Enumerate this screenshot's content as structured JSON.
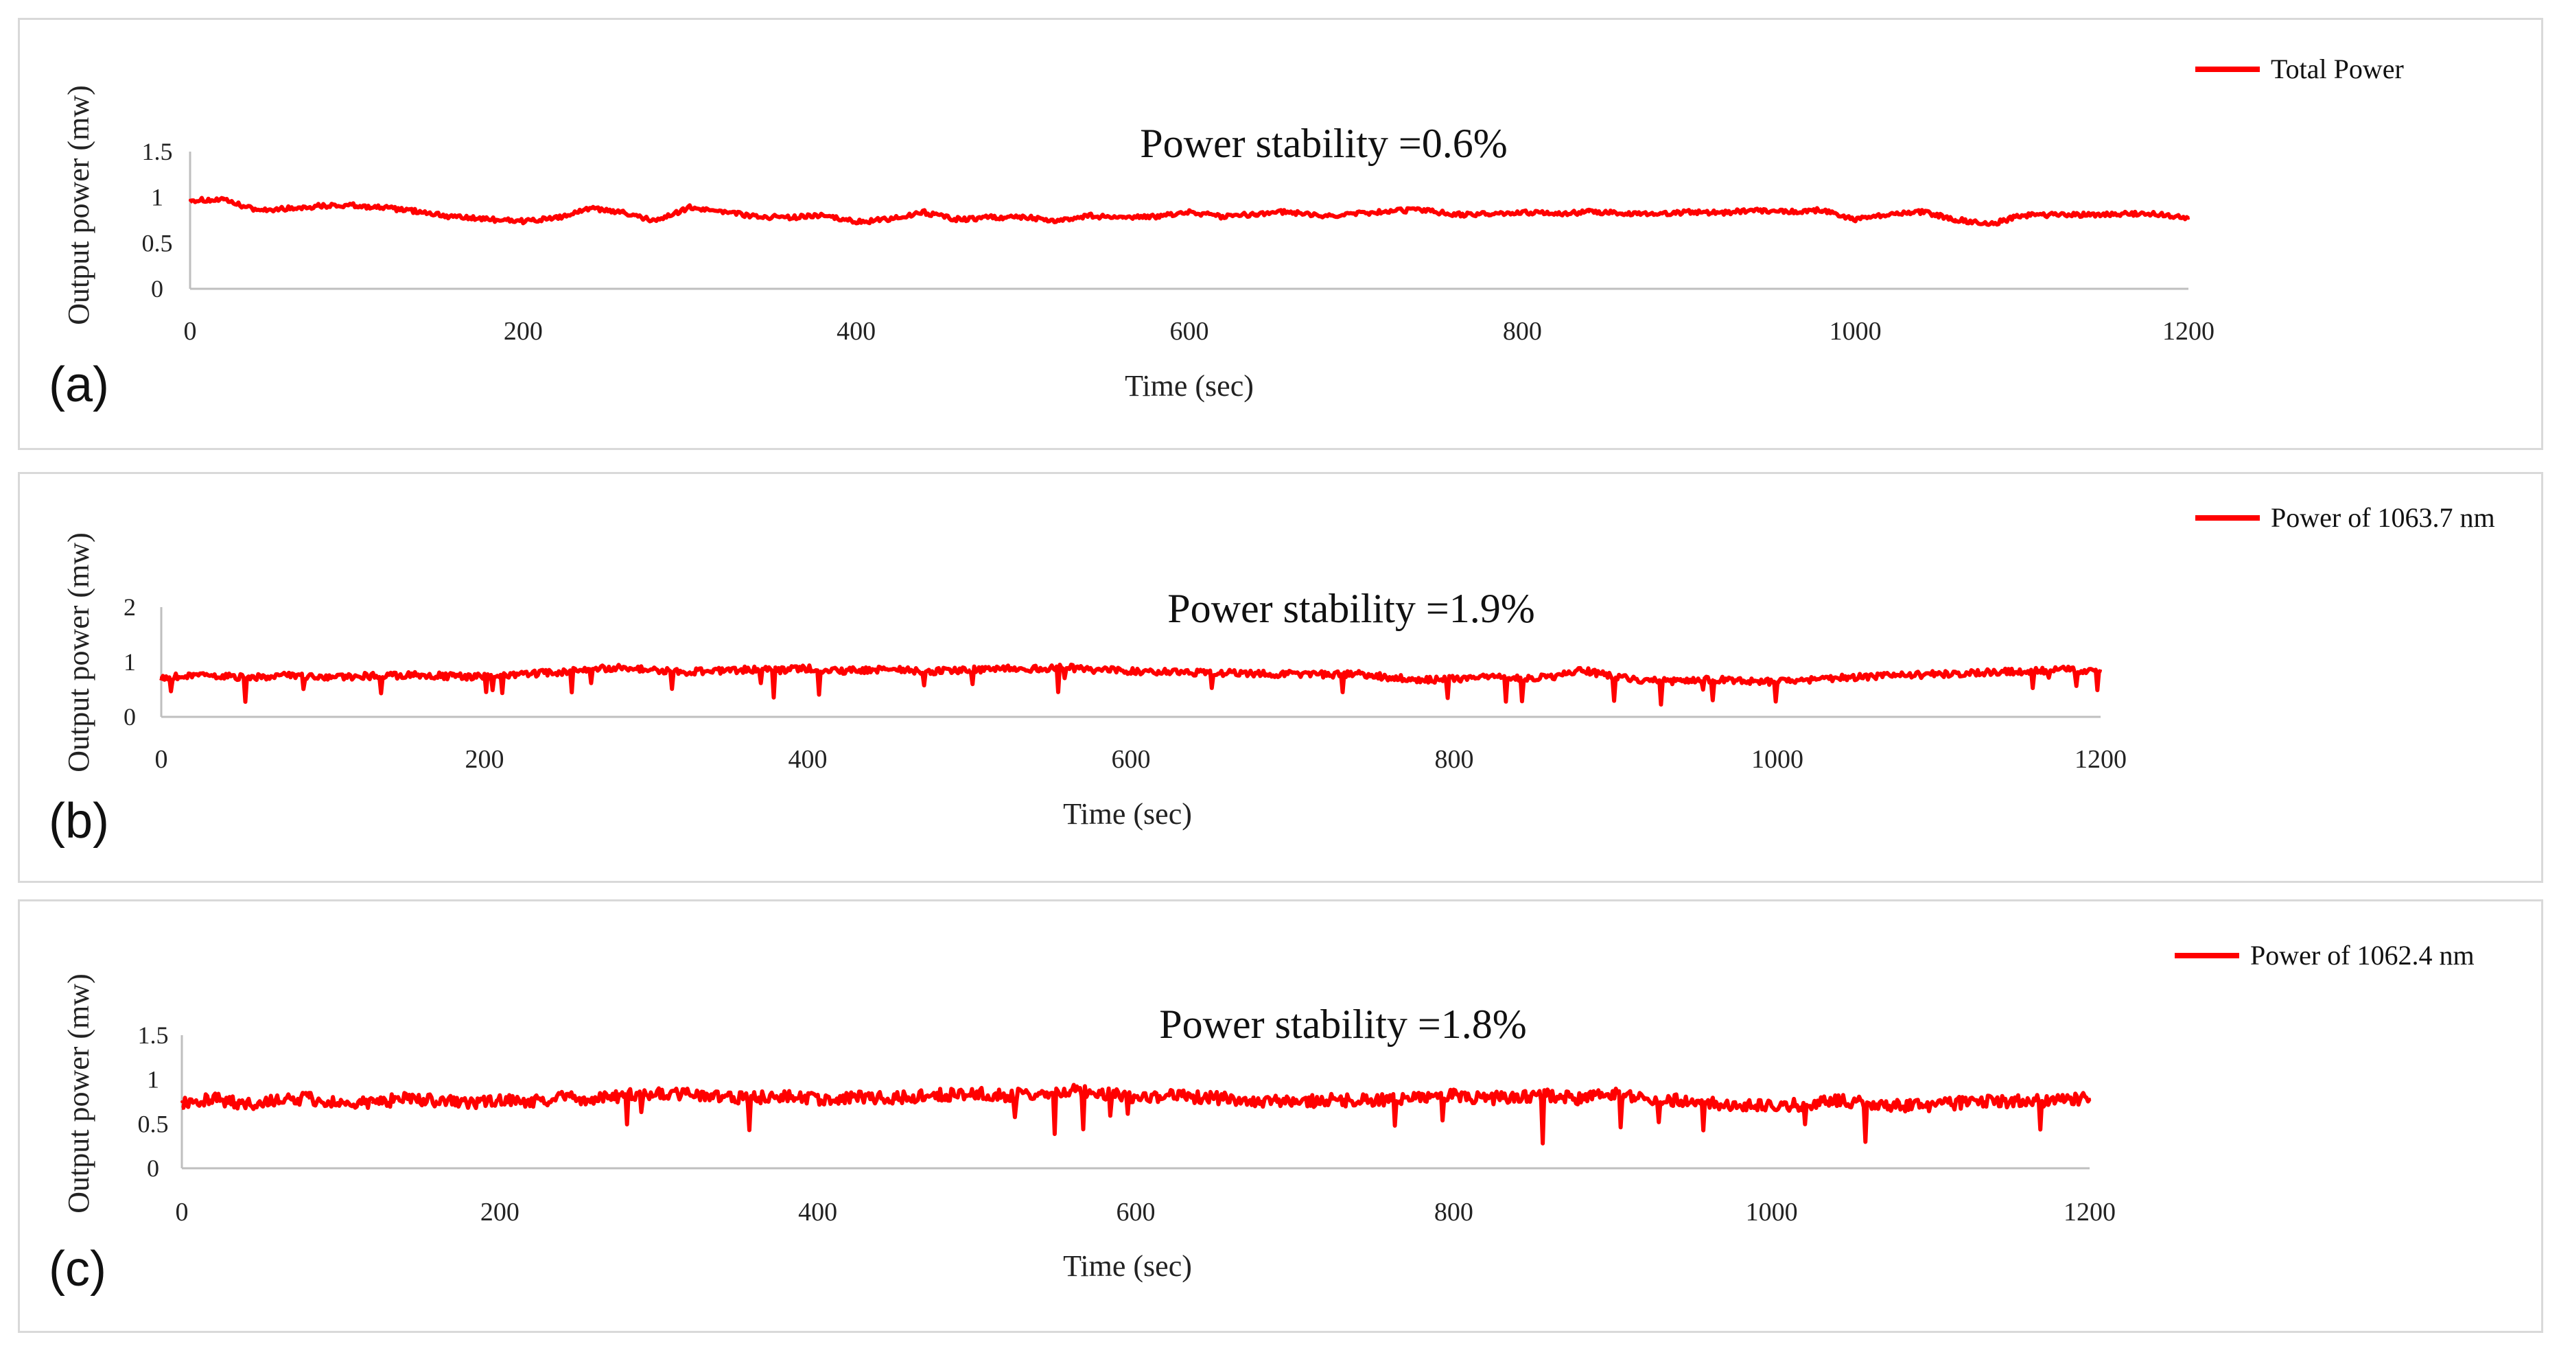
{
  "chart_data": [
    {
      "type": "line",
      "panel_label": "(a)",
      "annotation": "Power stability =0.6%",
      "xlabel": "Time (sec)",
      "ylabel": "Output power (mw)",
      "xlim": [
        0,
        1200
      ],
      "ylim": [
        0,
        1.5
      ],
      "x_ticks": [
        "0",
        "200",
        "400",
        "600",
        "800",
        "1000",
        "1200"
      ],
      "y_ticks": [
        "0",
        "0.5",
        "1",
        "1.5"
      ],
      "legend_position": "top-right",
      "series": [
        {
          "name": "Total Power",
          "color": "#ff0000",
          "x": [
            0,
            20,
            40,
            60,
            80,
            100,
            120,
            140,
            160,
            180,
            200,
            220,
            240,
            260,
            280,
            300,
            320,
            340,
            360,
            380,
            400,
            420,
            440,
            460,
            480,
            500,
            520,
            540,
            560,
            580,
            600,
            620,
            640,
            660,
            680,
            700,
            720,
            740,
            760,
            780,
            800,
            820,
            840,
            860,
            880,
            900,
            920,
            940,
            960,
            980,
            1000,
            1020,
            1040,
            1060,
            1080,
            1100,
            1120,
            1140,
            1160,
            1180,
            1200
          ],
          "y": [
            0.97,
            0.97,
            0.86,
            0.88,
            0.91,
            0.91,
            0.88,
            0.84,
            0.78,
            0.76,
            0.74,
            0.77,
            0.88,
            0.83,
            0.74,
            0.89,
            0.85,
            0.79,
            0.78,
            0.8,
            0.73,
            0.76,
            0.84,
            0.76,
            0.78,
            0.79,
            0.74,
            0.8,
            0.77,
            0.79,
            0.84,
            0.79,
            0.82,
            0.84,
            0.79,
            0.82,
            0.85,
            0.86,
            0.81,
            0.82,
            0.84,
            0.82,
            0.84,
            0.83,
            0.81,
            0.84,
            0.83,
            0.86,
            0.84,
            0.86,
            0.76,
            0.81,
            0.84,
            0.76,
            0.7,
            0.8,
            0.81,
            0.81,
            0.82,
            0.82,
            0.77
          ]
        }
      ]
    },
    {
      "type": "line",
      "panel_label": "(b)",
      "annotation": "Power stability =1.9%",
      "xlabel": "Time (sec)",
      "ylabel": "Output power (mw)",
      "xlim": [
        0,
        1200
      ],
      "ylim": [
        0,
        2
      ],
      "x_ticks": [
        "0",
        "200",
        "400",
        "600",
        "800",
        "1000",
        "1200"
      ],
      "y_ticks": [
        "0",
        "1",
        "2"
      ],
      "legend_position": "top-right",
      "series": [
        {
          "name": "Power of 1063.7 nm",
          "color": "#ff0000",
          "x": [
            0,
            20,
            40,
            60,
            80,
            100,
            120,
            140,
            160,
            180,
            200,
            220,
            240,
            260,
            280,
            300,
            320,
            340,
            360,
            380,
            400,
            420,
            440,
            460,
            480,
            500,
            520,
            540,
            560,
            580,
            600,
            620,
            640,
            660,
            680,
            700,
            720,
            740,
            760,
            780,
            800,
            820,
            840,
            860,
            880,
            900,
            920,
            940,
            960,
            980,
            1000,
            1020,
            1040,
            1060,
            1080,
            1100,
            1120,
            1140,
            1160,
            1180,
            1200
          ],
          "y": [
            0.72,
            0.75,
            0.74,
            0.72,
            0.76,
            0.73,
            0.74,
            0.75,
            0.76,
            0.74,
            0.73,
            0.78,
            0.8,
            0.85,
            0.9,
            0.86,
            0.82,
            0.84,
            0.86,
            0.85,
            0.88,
            0.84,
            0.86,
            0.85,
            0.83,
            0.86,
            0.88,
            0.87,
            0.9,
            0.85,
            0.84,
            0.82,
            0.8,
            0.8,
            0.78,
            0.79,
            0.77,
            0.78,
            0.72,
            0.68,
            0.69,
            0.72,
            0.7,
            0.72,
            0.85,
            0.72,
            0.67,
            0.65,
            0.68,
            0.66,
            0.64,
            0.68,
            0.72,
            0.74,
            0.76,
            0.78,
            0.8,
            0.82,
            0.84,
            0.86,
            0.84
          ]
        }
      ]
    },
    {
      "type": "line",
      "panel_label": "(c)",
      "annotation": "Power stability =1.8%",
      "xlabel": "Time (sec)",
      "ylabel": "Output power (mw)",
      "xlim": [
        0,
        1200
      ],
      "ylim": [
        0,
        1.5
      ],
      "x_ticks": [
        "0",
        "200",
        "400",
        "600",
        "800",
        "1000",
        "1200"
      ],
      "y_ticks": [
        "0",
        "0.5",
        "1",
        "1.5"
      ],
      "legend_position": "top-right",
      "series": [
        {
          "name": "Power of 1062.4 nm",
          "color": "#ff0000",
          "x": [
            0,
            20,
            40,
            60,
            80,
            100,
            120,
            140,
            160,
            180,
            200,
            220,
            240,
            260,
            280,
            300,
            320,
            340,
            360,
            380,
            400,
            420,
            440,
            460,
            480,
            500,
            520,
            540,
            560,
            580,
            600,
            620,
            640,
            660,
            680,
            700,
            720,
            740,
            760,
            780,
            800,
            820,
            840,
            860,
            880,
            900,
            920,
            940,
            960,
            980,
            1000,
            1020,
            1040,
            1060,
            1080,
            1100,
            1120,
            1140,
            1160,
            1180,
            1200
          ],
          "y": [
            0.75,
            0.78,
            0.73,
            0.76,
            0.79,
            0.72,
            0.74,
            0.78,
            0.76,
            0.73,
            0.77,
            0.75,
            0.8,
            0.78,
            0.82,
            0.84,
            0.83,
            0.8,
            0.79,
            0.82,
            0.78,
            0.8,
            0.79,
            0.81,
            0.83,
            0.84,
            0.82,
            0.86,
            0.88,
            0.84,
            0.8,
            0.82,
            0.8,
            0.78,
            0.76,
            0.74,
            0.77,
            0.76,
            0.78,
            0.8,
            0.82,
            0.79,
            0.8,
            0.82,
            0.78,
            0.84,
            0.8,
            0.77,
            0.74,
            0.72,
            0.7,
            0.72,
            0.76,
            0.74,
            0.7,
            0.71,
            0.74,
            0.76,
            0.75,
            0.77,
            0.78
          ]
        }
      ]
    }
  ]
}
